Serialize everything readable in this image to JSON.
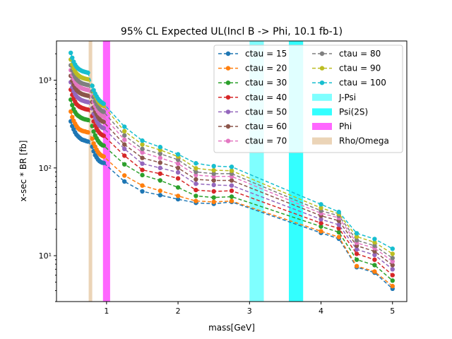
{
  "chart_data": {
    "type": "line",
    "title": "95% CL Expected UL(Incl B -> Phi, 10.1 fb-1)",
    "xlabel": "mass[GeV]",
    "ylabel": "x-sec * BR [fb]",
    "xlim": [
      0.3,
      5.2
    ],
    "ylim": [
      3,
      2800
    ],
    "yscale": "log",
    "xticks": [
      1,
      2,
      3,
      4,
      5
    ],
    "xtick_labels": [
      "1",
      "2",
      "3",
      "4",
      "5"
    ],
    "yticks": [
      10,
      100,
      1000
    ],
    "ytick_labels": [
      "10¹",
      "10²",
      "10³"
    ],
    "grid": false,
    "legend_position": "top-right",
    "x": [
      0.5,
      0.52,
      0.54,
      0.56,
      0.58,
      0.6,
      0.62,
      0.64,
      0.66,
      0.68,
      0.7,
      0.72,
      0.74,
      0.8,
      0.82,
      0.84,
      0.86,
      0.88,
      0.9,
      0.92,
      0.94,
      0.96,
      1.25,
      1.5,
      1.75,
      2.0,
      2.25,
      2.5,
      2.75,
      4.0,
      4.25,
      4.5,
      4.75,
      5.0
    ],
    "series": [
      {
        "name": "ctau = 15",
        "color": "#1f77b4",
        "values": [
          340,
          300,
          275,
          255,
          240,
          230,
          222,
          215,
          210,
          207,
          205,
          202,
          200,
          175,
          155,
          140,
          132,
          125,
          120,
          117,
          115,
          114,
          70,
          54,
          49,
          44,
          40,
          39,
          41,
          18.2,
          15.6,
          7.4,
          6.4,
          4.2
        ]
      },
      {
        "name": "ctau = 20",
        "color": "#ff7f0e",
        "values": [
          440,
          380,
          345,
          320,
          300,
          285,
          275,
          270,
          265,
          262,
          260,
          257,
          255,
          215,
          190,
          175,
          162,
          152,
          145,
          140,
          137,
          135,
          82,
          63,
          55,
          48,
          42,
          41,
          42,
          19,
          16.3,
          7.6,
          6.6,
          4.5
        ]
      },
      {
        "name": "ctau = 30",
        "color": "#2ca02c",
        "values": [
          600,
          520,
          470,
          435,
          410,
          395,
          385,
          375,
          368,
          362,
          358,
          355,
          352,
          300,
          260,
          235,
          218,
          205,
          195,
          187,
          182,
          180,
          110,
          83,
          72,
          60,
          48,
          46,
          47,
          21.5,
          18.5,
          9.0,
          7.8,
          5.2
        ]
      },
      {
        "name": "ctau = 40",
        "color": "#d62728",
        "values": [
          780,
          680,
          615,
          570,
          535,
          515,
          500,
          490,
          482,
          476,
          470,
          466,
          462,
          390,
          340,
          305,
          283,
          265,
          252,
          243,
          237,
          233,
          138,
          95,
          86,
          76,
          56,
          54,
          55,
          23.5,
          20.5,
          10.5,
          9.0,
          6.0
        ]
      },
      {
        "name": "ctau = 50",
        "color": "#9467bd",
        "values": [
          950,
          830,
          750,
          695,
          655,
          630,
          612,
          598,
          588,
          580,
          573,
          568,
          563,
          478,
          415,
          372,
          345,
          323,
          307,
          296,
          288,
          284,
          165,
          112,
          100,
          89,
          66,
          64,
          63,
          26,
          22.5,
          11.8,
          10.2,
          7.0
        ]
      },
      {
        "name": "ctau = 60",
        "color": "#8c564b",
        "values": [
          1120,
          980,
          885,
          820,
          775,
          745,
          722,
          706,
          694,
          685,
          677,
          671,
          665,
          565,
          490,
          440,
          408,
          382,
          362,
          349,
          340,
          335,
          185,
          130,
          115,
          100,
          74,
          72,
          72,
          28.5,
          25,
          13,
          11.2,
          7.8
        ]
      },
      {
        "name": "ctau = 70",
        "color": "#e377c2",
        "values": [
          1300,
          1140,
          1030,
          955,
          900,
          865,
          840,
          820,
          806,
          795,
          786,
          779,
          772,
          655,
          565,
          508,
          470,
          441,
          418,
          403,
          392,
          386,
          210,
          150,
          130,
          112,
          83,
          80,
          80,
          30.5,
          27,
          14,
          12.2,
          8.6
        ]
      },
      {
        "name": "ctau = 80",
        "color": "#7f7f7f",
        "values": [
          1480,
          1300,
          1175,
          1090,
          1028,
          988,
          958,
          936,
          920,
          907,
          897,
          889,
          881,
          745,
          640,
          575,
          532,
          498,
          472,
          455,
          443,
          436,
          235,
          165,
          145,
          124,
          90,
          86,
          86,
          32.5,
          28.5,
          15,
          13,
          9.4
        ]
      },
      {
        "name": "ctau = 90",
        "color": "#bcbd22",
        "values": [
          1720,
          1510,
          1365,
          1265,
          1193,
          1147,
          1112,
          1087,
          1068,
          1053,
          1041,
          1032,
          1022,
          865,
          745,
          670,
          620,
          580,
          550,
          530,
          516,
          508,
          262,
          185,
          160,
          135,
          99,
          94,
          93,
          35,
          30,
          16.5,
          14.2,
          10.5
        ]
      },
      {
        "name": "ctau = 100",
        "color": "#17becf",
        "values": [
          2050,
          1800,
          1625,
          1505,
          1420,
          1365,
          1325,
          1295,
          1272,
          1254,
          1240,
          1229,
          1217,
          862,
          770,
          702,
          655,
          617,
          588,
          568,
          553,
          540,
          295,
          205,
          173,
          143,
          113,
          105,
          103,
          38.5,
          31.5,
          18,
          15.5,
          12
        ]
      }
    ],
    "bands": [
      {
        "name": "J-Psi",
        "color": "#00ffff",
        "opacity": 0.5,
        "x_range": [
          3.0,
          3.2
        ]
      },
      {
        "name": "Psi(2S)",
        "color": "#00ffff",
        "opacity": 0.8,
        "x_range": [
          3.55,
          3.75
        ]
      },
      {
        "name": "Phi",
        "color": "#ff00ff",
        "opacity": 0.6,
        "x_range": [
          0.95,
          1.05
        ]
      },
      {
        "name": "Rho/Omega",
        "color": "#deb887",
        "opacity": 0.6,
        "x_range": [
          0.75,
          0.8
        ]
      }
    ]
  }
}
